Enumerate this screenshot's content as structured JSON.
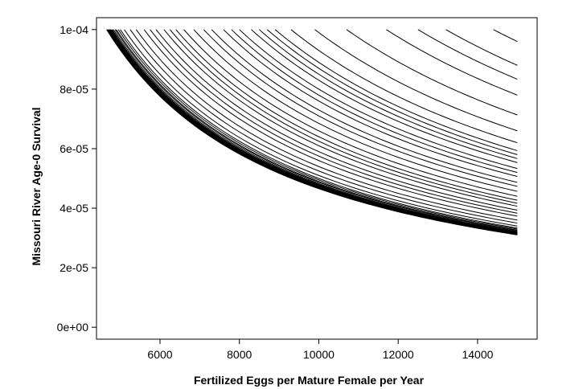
{
  "chart_data": {
    "type": "line",
    "title": "",
    "xlabel": "Fertilized Eggs per Mature Female per Year",
    "ylabel": "Missouri River Age-0 Survival",
    "xlim": [
      4400,
      15500
    ],
    "ylim": [
      -4e-06,
      0.000104
    ],
    "x_ticks": [
      6000,
      8000,
      10000,
      12000,
      14000
    ],
    "x_tick_labels": [
      "6000",
      "8000",
      "10000",
      "12000",
      "14000"
    ],
    "y_ticks": [
      0,
      2e-05,
      4e-05,
      6e-05,
      8e-05,
      0.0001
    ],
    "y_tick_labels": [
      "0e+00",
      "2e-05",
      "4e-05",
      "6e-05",
      "8e-05",
      "1e-04"
    ],
    "grid": false,
    "legend": "none",
    "x_end": 15000,
    "y_cap": 0.0001,
    "curve_constants": [
      0.4655,
      0.467,
      0.468,
      0.469,
      0.47,
      0.471,
      0.472,
      0.473,
      0.474,
      0.475,
      0.476,
      0.478,
      0.48,
      0.483,
      0.487,
      0.49,
      0.495,
      0.5,
      0.51,
      0.525,
      0.54,
      0.56,
      0.575,
      0.59,
      0.61,
      0.625,
      0.64,
      0.66,
      0.685,
      0.71,
      0.73,
      0.76,
      0.78,
      0.8,
      0.83,
      0.85,
      0.87,
      0.89,
      0.93,
      0.99,
      1.07,
      1.17,
      1.25,
      1.32,
      1.44
    ]
  }
}
